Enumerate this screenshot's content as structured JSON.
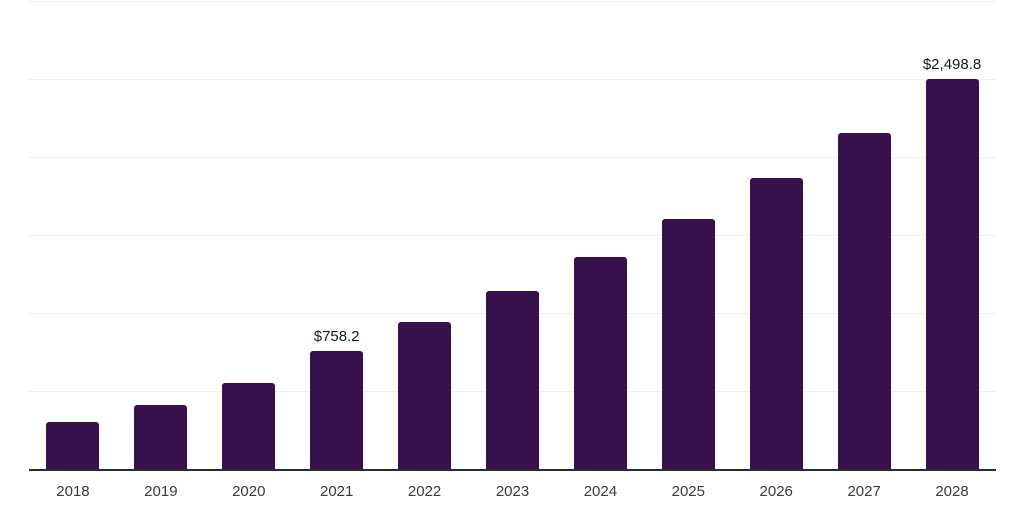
{
  "chart_data": {
    "type": "bar",
    "categories": [
      "2018",
      "2019",
      "2020",
      "2021",
      "2022",
      "2023",
      "2024",
      "2025",
      "2026",
      "2027",
      "2028"
    ],
    "values": [
      300,
      412.5,
      551.5,
      758.2,
      943.5,
      1142,
      1360,
      1602.5,
      1865,
      2153,
      2498.8
    ],
    "bar_labels": [
      "",
      "",
      "",
      "$758.2",
      "",
      "",
      "",
      "",
      "",
      "",
      "$2,498.8"
    ],
    "title": "",
    "xlabel": "",
    "ylabel": "",
    "ylim": [
      0,
      3000
    ],
    "gridline_step": 500,
    "grid": true,
    "legend": false,
    "colors": {
      "bar": "#36114C",
      "axis_line": "#2b2b2b",
      "gridline": "#efefef",
      "tick_label": "#3a3a3a",
      "data_label": "#1a1a1a"
    }
  }
}
